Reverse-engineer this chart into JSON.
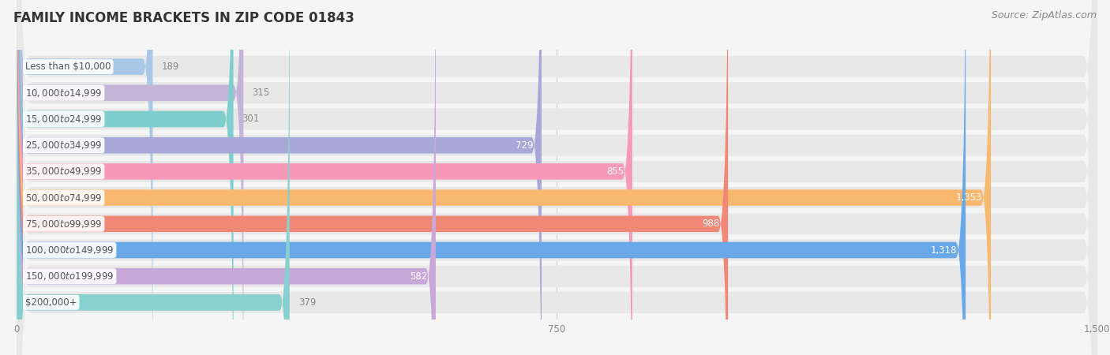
{
  "title": "FAMILY INCOME BRACKETS IN ZIP CODE 01843",
  "source": "Source: ZipAtlas.com",
  "categories": [
    "Less than $10,000",
    "$10,000 to $14,999",
    "$15,000 to $24,999",
    "$25,000 to $34,999",
    "$35,000 to $49,999",
    "$50,000 to $74,999",
    "$75,000 to $99,999",
    "$100,000 to $149,999",
    "$150,000 to $199,999",
    "$200,000+"
  ],
  "values": [
    189,
    315,
    301,
    729,
    855,
    1353,
    988,
    1318,
    582,
    379
  ],
  "bar_colors": [
    "#a8c8e8",
    "#c4b4d8",
    "#7ecece",
    "#a8a8d8",
    "#f898b8",
    "#f8b870",
    "#f08878",
    "#68a8e8",
    "#c8a8d8",
    "#88d0d0"
  ],
  "xlim_max": 1500,
  "xticks": [
    0,
    750,
    1500
  ],
  "background_color": "#f5f5f5",
  "bar_bg_color": "#e8e8e8",
  "title_fontsize": 12,
  "source_fontsize": 9,
  "cat_fontsize": 8.5,
  "val_fontsize": 8.5,
  "value_threshold": 420,
  "inside_label_color": "#ffffff",
  "outside_label_color": "#888888",
  "cat_label_color": "#555555"
}
